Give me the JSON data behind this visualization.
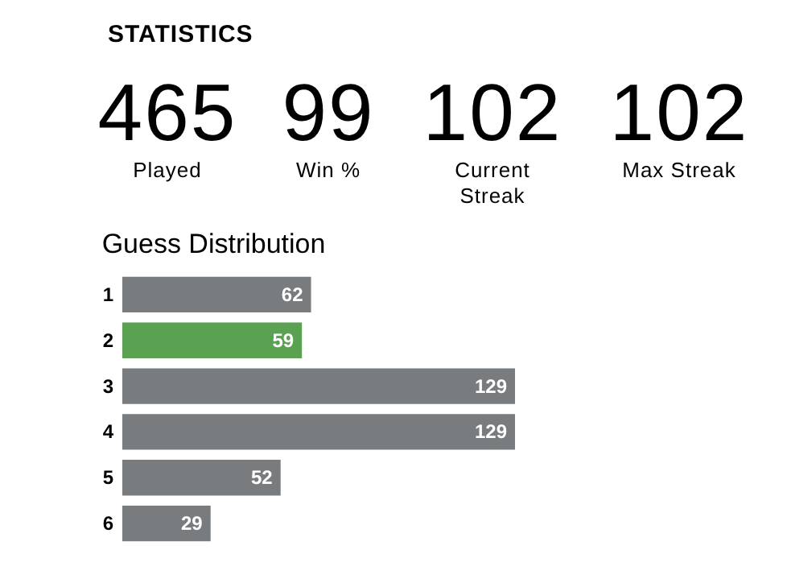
{
  "chart_data": [
    {
      "type": "other",
      "title": "STATISTICS",
      "annotations": [
        "465",
        "Played",
        "99",
        "Win %",
        "102",
        "Current Streak",
        "102",
        "Max Streak"
      ]
    },
    {
      "type": "bar",
      "orientation": "horizontal",
      "title": "Guess Distribution",
      "categories": [
        "1",
        "2",
        "3",
        "4",
        "5",
        "6"
      ],
      "values": [
        62,
        59,
        129,
        129,
        52,
        29
      ],
      "colors": [
        "#787c7e",
        "#5aa252",
        "#787c7e",
        "#787c7e",
        "#787c7e",
        "#787c7e"
      ],
      "data_labels": true
    }
  ]
}
